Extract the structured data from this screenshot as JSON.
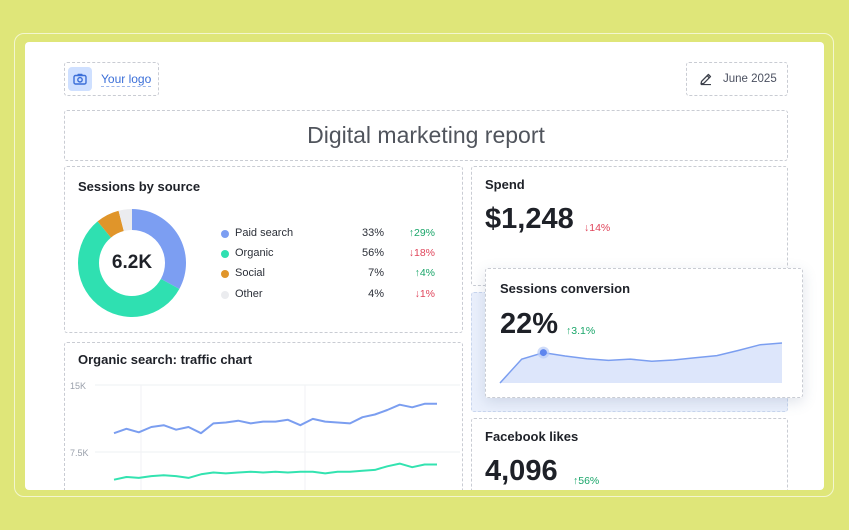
{
  "header": {
    "logo_label": "Your logo",
    "date_label": "June 2025",
    "report_title": "Digital marketing report"
  },
  "sessions_by_source": {
    "title": "Sessions by source",
    "total": "6.2K",
    "items": [
      {
        "name": "Paid search",
        "pct": "33%",
        "change": "29%",
        "direction": "up",
        "color": "#7c9ef2",
        "share": 33
      },
      {
        "name": "Organic",
        "pct": "56%",
        "change": "18%",
        "direction": "down",
        "color": "#2fe0b1",
        "share": 56
      },
      {
        "name": "Social",
        "pct": "7%",
        "change": "4%",
        "direction": "up",
        "color": "#e0952a",
        "share": 7
      },
      {
        "name": "Other",
        "pct": "4%",
        "change": "1%",
        "direction": "down",
        "color": "#ebecef",
        "share": 4
      }
    ]
  },
  "organic_chart": {
    "title": "Organic search: traffic chart",
    "y_ticks": [
      "15K",
      "7.5K"
    ]
  },
  "spend": {
    "title": "Spend",
    "value": "$1,248",
    "change": "14%",
    "direction": "down"
  },
  "sessions_conversion": {
    "title": "Sessions conversion",
    "value": "22%",
    "change": "3.1%",
    "direction": "up"
  },
  "facebook_likes": {
    "title": "Facebook likes",
    "value": "4,096",
    "change": "56%",
    "direction": "up"
  },
  "chart_data": [
    {
      "type": "line",
      "title": "Organic search: traffic chart",
      "ylim": [
        0,
        15000
      ],
      "yticks": [
        15000,
        7500
      ],
      "series": [
        {
          "color": "#7b9ef0",
          "values": [
            9600,
            10100,
            9700,
            10300,
            10500,
            10000,
            10300,
            9600,
            10700,
            10800,
            11000,
            10700,
            10900,
            10900,
            11100,
            10500,
            11200,
            10900,
            10800,
            10700,
            11400,
            11700,
            12200,
            12800,
            12500,
            12900,
            12900
          ]
        },
        {
          "color": "#33e3b0",
          "values": [
            4400,
            4700,
            4600,
            4800,
            4900,
            4800,
            4600,
            5000,
            5200,
            5100,
            5200,
            5300,
            5200,
            5300,
            5200,
            5300,
            5300,
            5100,
            5300,
            5300,
            5400,
            5500,
            5900,
            6200,
            5800,
            6100,
            6100
          ]
        }
      ]
    },
    {
      "type": "area",
      "title": "Sessions conversion",
      "series": [
        {
          "color": "#7b9ef0",
          "values": [
            0,
            55,
            70,
            62,
            56,
            52,
            55,
            50,
            53,
            58,
            63,
            75,
            88,
            92
          ]
        }
      ],
      "highlight_index": 2
    }
  ],
  "colors": {
    "background": "#dfe679",
    "up": "#1aa66a",
    "down": "#e0455b"
  }
}
